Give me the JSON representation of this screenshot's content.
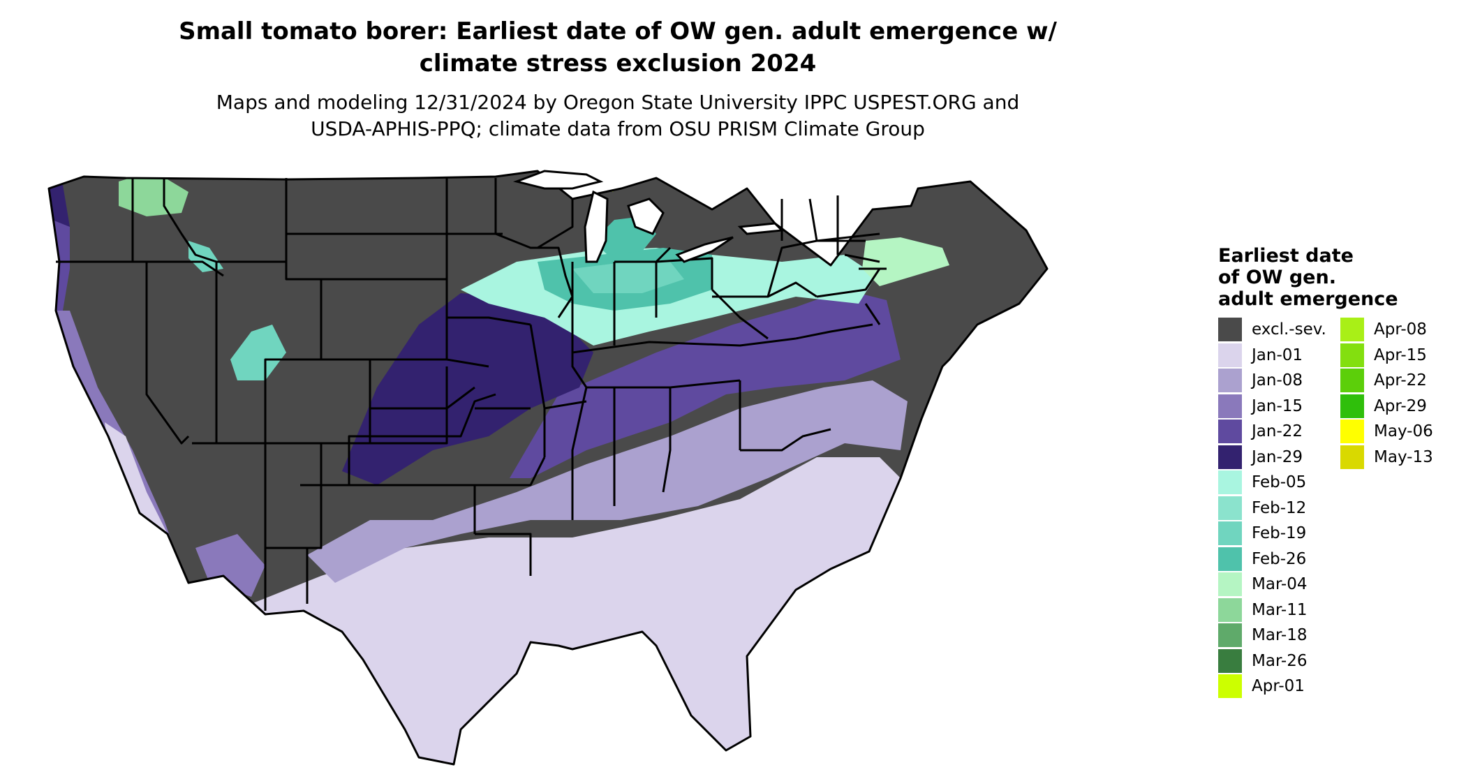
{
  "title": {
    "line1": "Small tomato borer: Earliest date of OW gen. adult emergence w/",
    "line2": "climate stress exclusion 2024"
  },
  "subtitle": {
    "line1": "Maps and modeling 12/31/2024 by Oregon State University IPPC USPEST.ORG and",
    "line2": "USDA-APHIS-PPQ; climate data from OSU PRISM Climate Group"
  },
  "legend": {
    "title_line1": "Earliest date",
    "title_line2": "of OW gen.",
    "title_line3": "adult emergence",
    "items": [
      {
        "label": "excl.-sev.",
        "color": "#4a4a4a"
      },
      {
        "label": "Jan-01",
        "color": "#dbd4ec"
      },
      {
        "label": "Jan-08",
        "color": "#aba1cf"
      },
      {
        "label": "Jan-15",
        "color": "#8a79bb"
      },
      {
        "label": "Jan-22",
        "color": "#5f4a9f"
      },
      {
        "label": "Jan-29",
        "color": "#33226f"
      },
      {
        "label": "Feb-05",
        "color": "#a9f5e0"
      },
      {
        "label": "Feb-12",
        "color": "#8be3cd"
      },
      {
        "label": "Feb-19",
        "color": "#70d5bf"
      },
      {
        "label": "Feb-26",
        "color": "#4fc2ab"
      },
      {
        "label": "Mar-04",
        "color": "#b5f5c3"
      },
      {
        "label": "Mar-11",
        "color": "#8dd79a"
      },
      {
        "label": "Mar-18",
        "color": "#5faa6a"
      },
      {
        "label": "Mar-26",
        "color": "#397d3f"
      },
      {
        "label": "Apr-01",
        "color": "#ccff00"
      },
      {
        "label": "Apr-08",
        "color": "#a9ef17"
      },
      {
        "label": "Apr-15",
        "color": "#83df0f"
      },
      {
        "label": "Apr-22",
        "color": "#5ccf0a"
      },
      {
        "label": "Apr-29",
        "color": "#2fbf0b"
      },
      {
        "label": "May-06",
        "color": "#ffff00"
      },
      {
        "label": "May-13",
        "color": "#d9d900"
      }
    ]
  }
}
